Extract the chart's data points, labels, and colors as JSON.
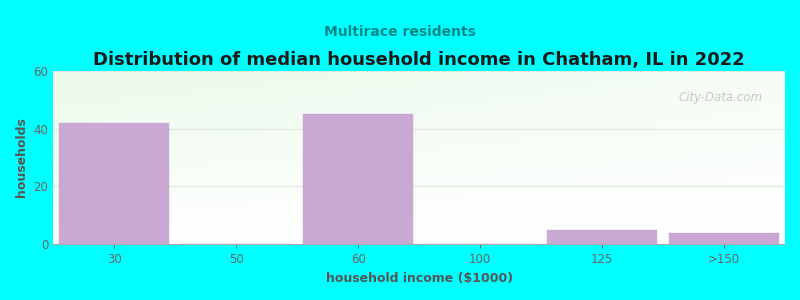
{
  "title": "Distribution of median household income in Chatham, IL in 2022",
  "subtitle": "Multirace residents",
  "xlabel": "household income ($1000)",
  "ylabel": "households",
  "background_color": "#00FFFF",
  "plot_bg_colors": [
    "#e8f5e8",
    "#f8fff8",
    "#ffffff",
    "#ffffff"
  ],
  "bar_color": "#c9a8d4",
  "bar_edge_color": "#c9a8d4",
  "categories": [
    "30",
    "50",
    "60",
    "100",
    "125",
    ">150"
  ],
  "values": [
    42,
    0,
    45,
    0,
    5,
    4
  ],
  "bar_positions": [
    0,
    1,
    2,
    3,
    4,
    5
  ],
  "bar_width": 0.9,
  "xlim": [
    -0.5,
    5.5
  ],
  "ylim": [
    0,
    60
  ],
  "yticks": [
    0,
    20,
    40,
    60
  ],
  "title_fontsize": 13,
  "subtitle_fontsize": 10,
  "axis_label_fontsize": 9,
  "tick_fontsize": 8.5,
  "title_color": "#1a1a1a",
  "subtitle_color": "#008888",
  "axis_label_color": "#555555",
  "tick_color": "#666666",
  "watermark_text": "City-Data.com",
  "grid_color": "#e0e8e0",
  "grid_linewidth": 0.8
}
